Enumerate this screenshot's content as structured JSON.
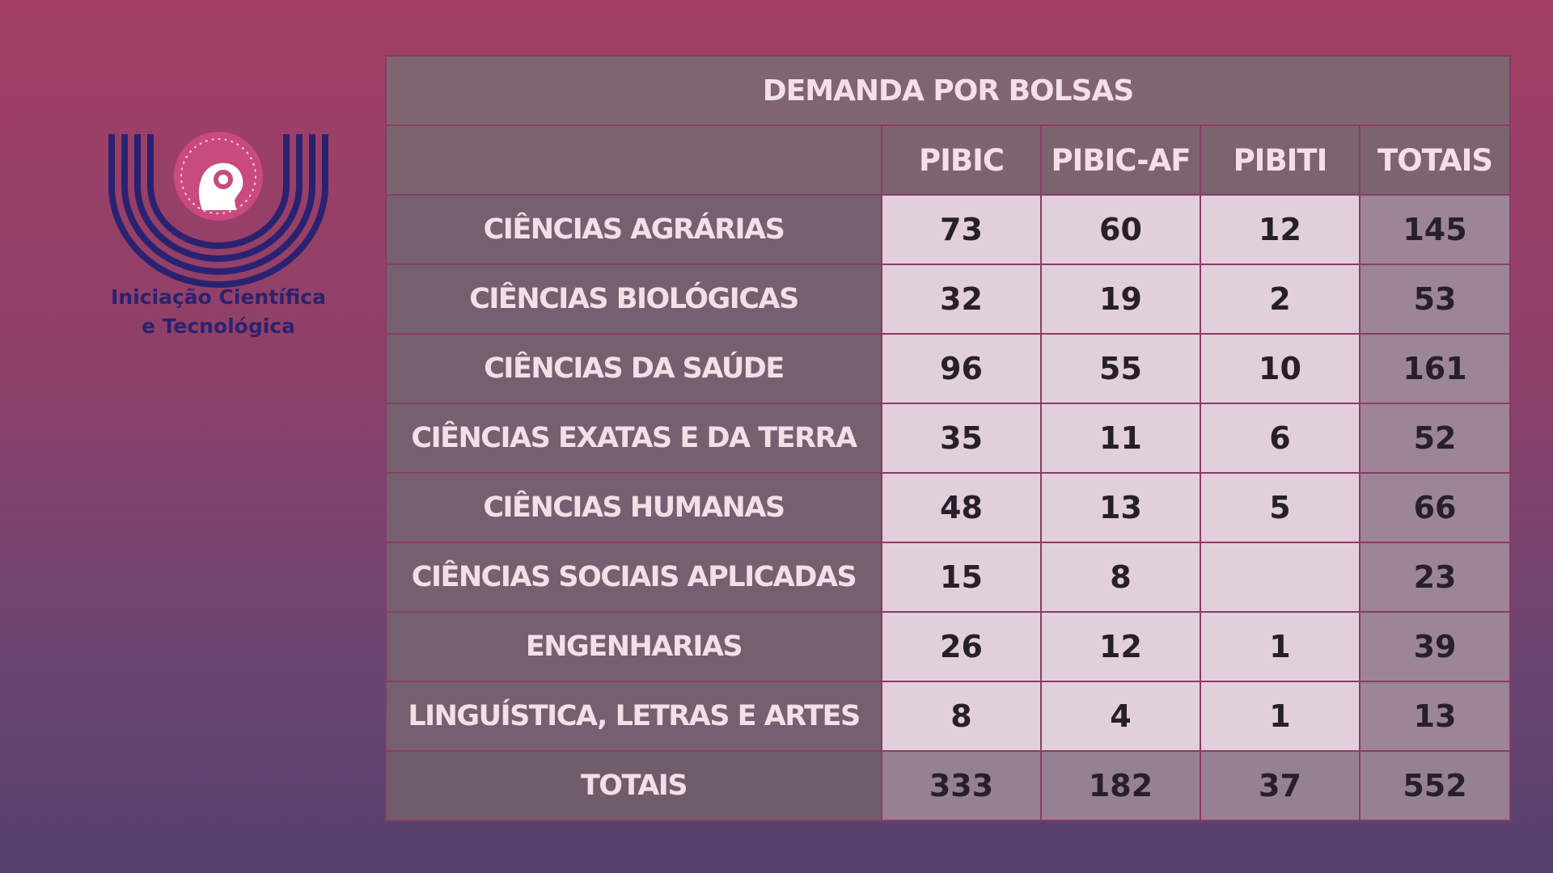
{
  "logo": {
    "line1": "Iniciação Científica",
    "line2": "e Tecnológica",
    "colors": {
      "arcs": "#2a2270",
      "emblem": "#c94a7e",
      "text": "#2a2270"
    }
  },
  "table": {
    "title": "DEMANDA POR BOLSAS",
    "columns": [
      "PIBIC",
      "PIBIC-AF",
      "PIBITI",
      "TOTAIS"
    ],
    "rows": [
      {
        "area": "CIÊNCIAS AGRÁRIAS",
        "pibic": "73",
        "pibic_af": "60",
        "pibiti": "12",
        "totais": "145"
      },
      {
        "area": "CIÊNCIAS BIOLÓGICAS",
        "pibic": "32",
        "pibic_af": "19",
        "pibiti": "2",
        "totais": "53"
      },
      {
        "area": "CIÊNCIAS DA SAÚDE",
        "pibic": "96",
        "pibic_af": "55",
        "pibiti": "10",
        "totais": "161"
      },
      {
        "area": "CIÊNCIAS EXATAS E DA TERRA",
        "pibic": "35",
        "pibic_af": "11",
        "pibiti": "6",
        "totais": "52"
      },
      {
        "area": "CIÊNCIAS HUMANAS",
        "pibic": "48",
        "pibic_af": "13",
        "pibiti": "5",
        "totais": "66"
      },
      {
        "area": "CIÊNCIAS SOCIAIS APLICADAS",
        "pibic": "15",
        "pibic_af": "8",
        "pibiti": "",
        "totais": "23"
      },
      {
        "area": "ENGENHARIAS",
        "pibic": "26",
        "pibic_af": "12",
        "pibiti": "1",
        "totais": "39"
      },
      {
        "area": "LINGUÍSTICA, LETRAS E ARTES",
        "pibic": "8",
        "pibic_af": "4",
        "pibiti": "1",
        "totais": "13"
      }
    ],
    "totals": {
      "label": "TOTAIS",
      "pibic": "333",
      "pibic_af": "182",
      "pibiti": "37",
      "totais": "552"
    }
  }
}
